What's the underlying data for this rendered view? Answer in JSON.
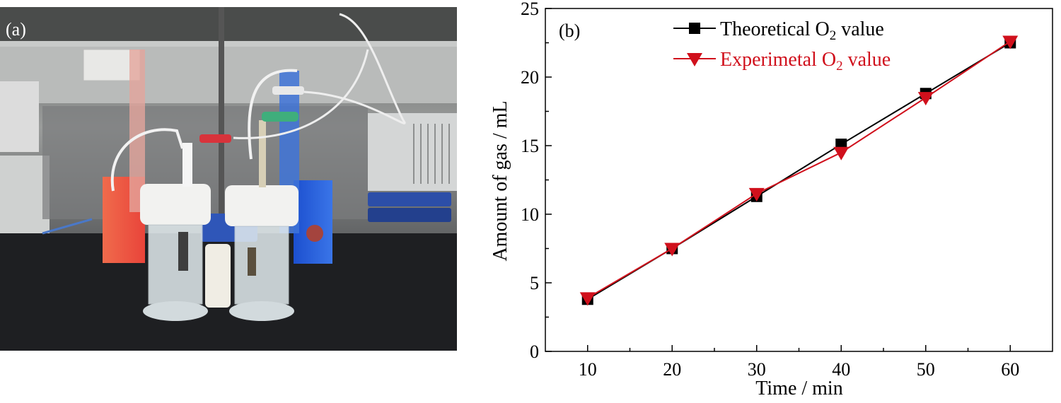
{
  "panel_a": {
    "label": "(a)"
  },
  "chart_data": {
    "type": "line",
    "panel_label": "(b)",
    "xlabel": "Time / min",
    "ylabel": "Amount of gas / mL",
    "x": [
      10,
      20,
      30,
      40,
      50,
      60
    ],
    "xlim": [
      5,
      65
    ],
    "ylim": [
      0,
      25
    ],
    "xticks": [
      "10",
      "20",
      "30",
      "40",
      "50",
      "60"
    ],
    "yticks": [
      "0",
      "5",
      "10",
      "15",
      "20",
      "25"
    ],
    "grid": false,
    "legend_position": "top",
    "series": [
      {
        "name": "Theoretical O",
        "name_sub": "2",
        "name_suffix": " value",
        "marker": "square",
        "color": "#000000",
        "values": [
          3.8,
          7.5,
          11.3,
          15.1,
          18.8,
          22.5
        ]
      },
      {
        "name": "Experimetal O",
        "name_sub": "2",
        "name_suffix": " value",
        "marker": "triangle-down",
        "color": "#d0101c",
        "values": [
          3.9,
          7.5,
          11.5,
          14.5,
          18.5,
          22.6
        ]
      }
    ]
  }
}
